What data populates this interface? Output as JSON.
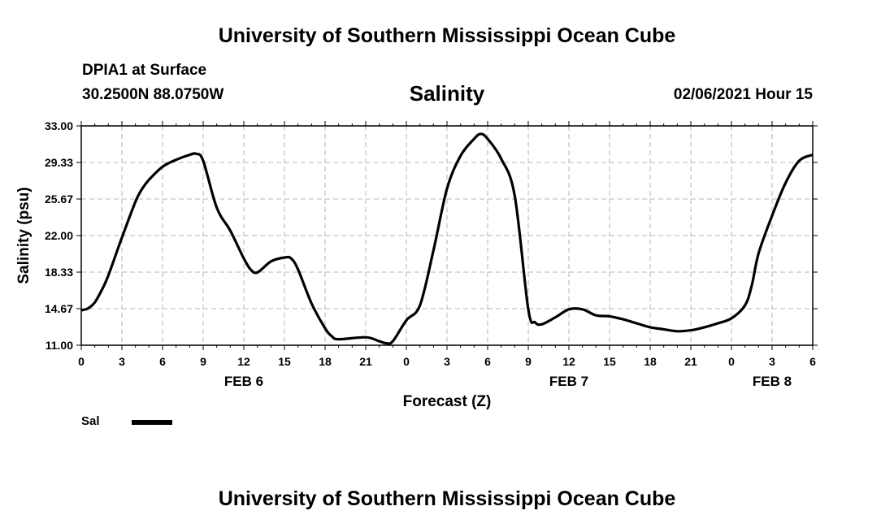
{
  "header": {
    "title": "University of Southern Mississippi Ocean Cube",
    "station": "DPIA1 at Surface",
    "coords": "30.2500N 88.0750W",
    "chart_title": "Salinity",
    "datetime": "02/06/2021 Hour 15"
  },
  "footer": {
    "title": "University of Southern Mississippi Ocean Cube"
  },
  "legend": {
    "label": "Sal",
    "color": "#000000"
  },
  "chart_data": {
    "type": "line",
    "title": "Salinity",
    "xlabel": "Forecast (Z)",
    "ylabel": "Salinity (psu)",
    "ylim": [
      11.0,
      33.0
    ],
    "xlim": [
      0,
      54
    ],
    "grid": true,
    "yticks": [
      "33.00",
      "29.33",
      "25.67",
      "22.00",
      "18.33",
      "14.67",
      "11.00"
    ],
    "xticks": [
      "0",
      "3",
      "6",
      "9",
      "12",
      "15",
      "18",
      "21",
      "0",
      "3",
      "6",
      "9",
      "12",
      "15",
      "18",
      "21",
      "0",
      "3",
      "6"
    ],
    "date_labels": [
      {
        "label": "FEB 6",
        "hour": 12
      },
      {
        "label": "FEB 7",
        "hour": 36
      },
      {
        "label": "FEB 8",
        "hour": 51
      }
    ],
    "series": [
      {
        "name": "Sal",
        "x": [
          0,
          0.5,
          1,
          1.5,
          2,
          3,
          4,
          4.5,
          5,
          6,
          7,
          8,
          8.5,
          9,
          10,
          11,
          12,
          12.5,
          13,
          14,
          15,
          15.5,
          16,
          17,
          18,
          18.5,
          19,
          21,
          22,
          22.5,
          23,
          24,
          25,
          26,
          27,
          28,
          29,
          29.5,
          30,
          31,
          32,
          33,
          33.5,
          34,
          35,
          36,
          37,
          38,
          39,
          40,
          41,
          42,
          43,
          44,
          45,
          46,
          47,
          48,
          49,
          49.5,
          50,
          51,
          52,
          53,
          54
        ],
        "values": [
          14.5,
          14.7,
          15.3,
          16.5,
          18.0,
          21.8,
          25.4,
          26.7,
          27.6,
          28.9,
          29.6,
          30.1,
          30.2,
          29.5,
          24.8,
          22.5,
          19.7,
          18.6,
          18.3,
          19.4,
          19.8,
          19.7,
          18.6,
          15.2,
          12.7,
          11.9,
          11.6,
          11.8,
          11.4,
          11.2,
          11.4,
          13.5,
          15.0,
          20.5,
          26.7,
          30.0,
          31.7,
          32.2,
          31.7,
          29.7,
          26.0,
          14.6,
          13.3,
          13.1,
          13.8,
          14.6,
          14.6,
          14.0,
          13.9,
          13.6,
          13.2,
          12.8,
          12.6,
          12.4,
          12.5,
          12.8,
          13.2,
          13.7,
          15.0,
          17.0,
          20.2,
          24.0,
          27.3,
          29.5,
          30.1
        ]
      }
    ]
  }
}
